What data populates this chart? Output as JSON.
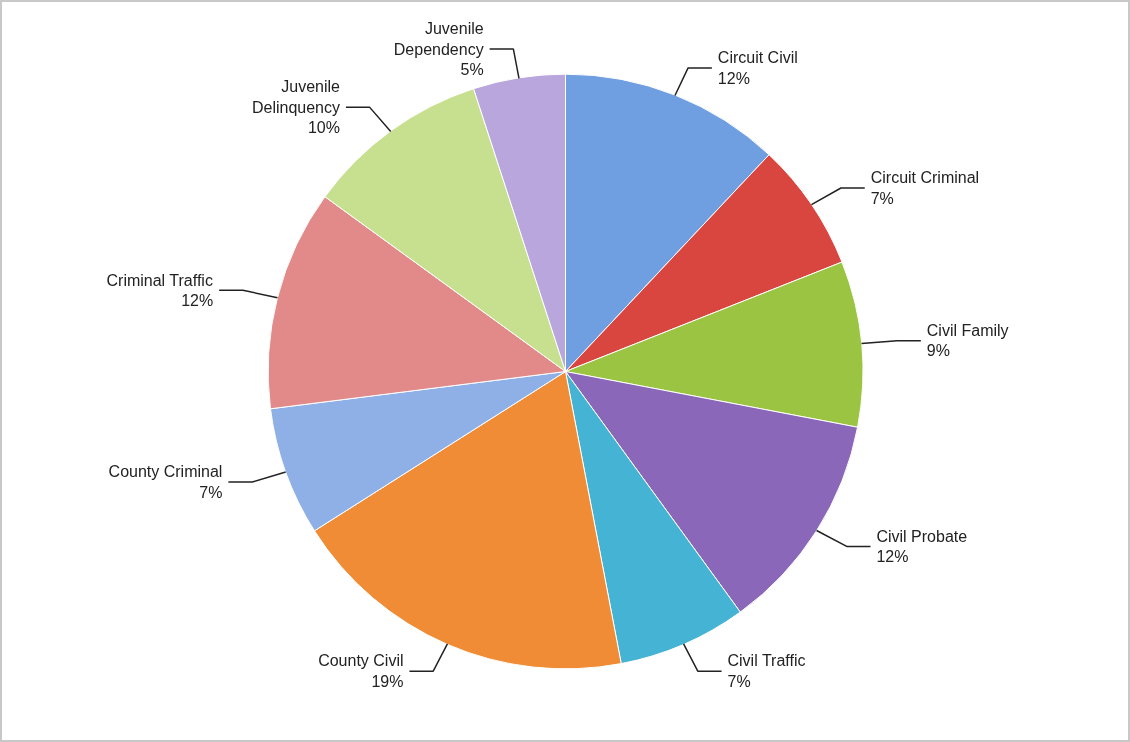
{
  "chart_data": {
    "type": "pie",
    "categories": [
      "Circuit Civil",
      "Circuit Criminal",
      "Civil Family",
      "Civil Probate",
      "Civil Traffic",
      "County Civil",
      "County Criminal",
      "Criminal Traffic",
      "Juvenile Delinquency",
      "Juvenile Dependency"
    ],
    "values": [
      12,
      7,
      9,
      12,
      7,
      19,
      7,
      12,
      10,
      5
    ],
    "colors": [
      "#6f9fe0",
      "#d9453f",
      "#9bc443",
      "#8a67b8",
      "#45b3d4",
      "#f08c35",
      "#8fb0e6",
      "#e28a8a",
      "#c6e08f",
      "#b9a6dd"
    ],
    "value_labels": [
      "12%",
      "7%",
      "9%",
      "12%",
      "7%",
      "19%",
      "7%",
      "12%",
      "10%",
      "5%"
    ]
  }
}
